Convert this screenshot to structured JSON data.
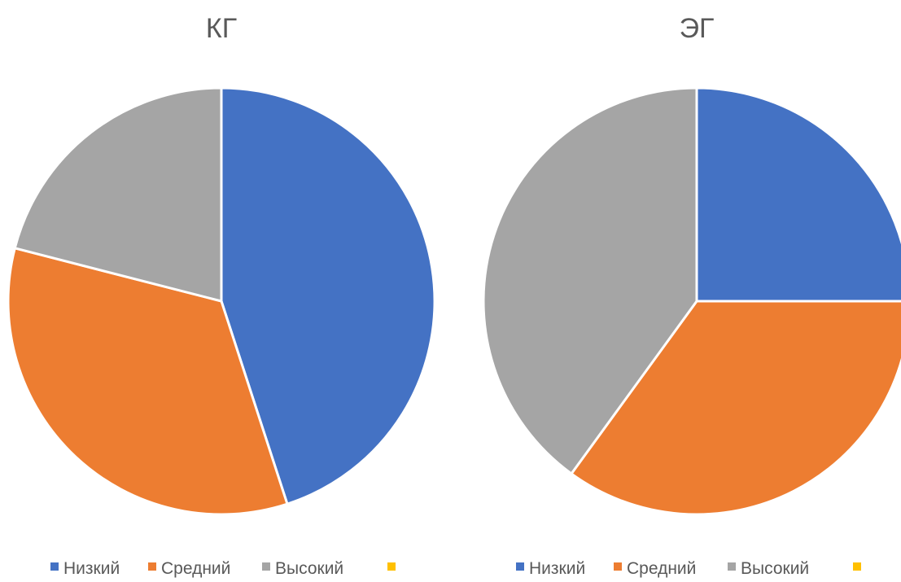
{
  "chart_data": [
    {
      "type": "pie",
      "title": "КГ",
      "categories": [
        "Низкий",
        "Средний",
        "Высокий",
        ""
      ],
      "values": [
        45,
        34,
        21,
        0
      ],
      "colors": [
        "#4472C4",
        "#ED7D31",
        "#A5A5A5",
        "#FFC000"
      ],
      "legend_position": "bottom"
    },
    {
      "type": "pie",
      "title": "ЭГ",
      "categories": [
        "Низкий",
        "Средний",
        "Высокий",
        ""
      ],
      "values": [
        25,
        35,
        40,
        0
      ],
      "colors": [
        "#4472C4",
        "#ED7D31",
        "#A5A5A5",
        "#FFC000"
      ],
      "legend_position": "bottom"
    }
  ]
}
